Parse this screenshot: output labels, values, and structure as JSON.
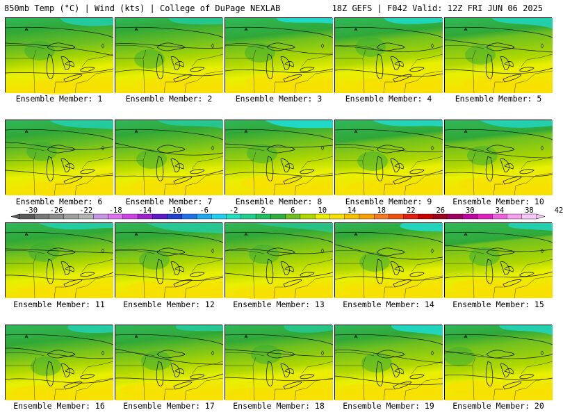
{
  "header": {
    "left": "850mb Temp (°C) | Wind (kts) | College of DuPage NEXLAB",
    "right": "18Z GEFS | F042 Valid: 12Z FRI JUN 06 2025"
  },
  "members": [
    {
      "label": "Ensemble Member: 1"
    },
    {
      "label": "Ensemble Member: 2"
    },
    {
      "label": "Ensemble Member: 3"
    },
    {
      "label": "Ensemble Member: 4"
    },
    {
      "label": "Ensemble Member: 5"
    },
    {
      "label": "Ensemble Member: 6"
    },
    {
      "label": "Ensemble Member: 7"
    },
    {
      "label": "Ensemble Member: 8"
    },
    {
      "label": "Ensemble Member: 9"
    },
    {
      "label": "Ensemble Member: 10"
    },
    {
      "label": "Ensemble Member: 11"
    },
    {
      "label": "Ensemble Member: 12"
    },
    {
      "label": "Ensemble Member: 13"
    },
    {
      "label": "Ensemble Member: 14"
    },
    {
      "label": "Ensemble Member: 15"
    },
    {
      "label": "Ensemble Member: 16"
    },
    {
      "label": "Ensemble Member: 17"
    },
    {
      "label": "Ensemble Member: 18"
    },
    {
      "label": "Ensemble Member: 19"
    },
    {
      "label": "Ensemble Member: 20"
    }
  ],
  "colorbar": {
    "ticks": [
      "-30",
      "-26",
      "-22",
      "-18",
      "-14",
      "-10",
      "-6",
      "-2",
      "2",
      "6",
      "10",
      "14",
      "18",
      "22",
      "26",
      "30",
      "34",
      "38",
      "42"
    ],
    "colors": [
      "#5a5a5a",
      "#787878",
      "#8c8c8c",
      "#a0a0a0",
      "#b4b4b4",
      "#c896e6",
      "#e070f0",
      "#d040e8",
      "#a020d0",
      "#6018c8",
      "#2040d0",
      "#2070e8",
      "#20a8f0",
      "#20d0f0",
      "#20e0c0",
      "#20d090",
      "#20c060",
      "#30b040",
      "#70c020",
      "#b0d800",
      "#e8f000",
      "#f8e000",
      "#f8c000",
      "#f8a000",
      "#f87820",
      "#f05010",
      "#e02010",
      "#c80000",
      "#a00020",
      "#a00060",
      "#c000a0",
      "#e020c0",
      "#f060e0",
      "#f8a0f0",
      "#f8c8f8"
    ]
  }
}
